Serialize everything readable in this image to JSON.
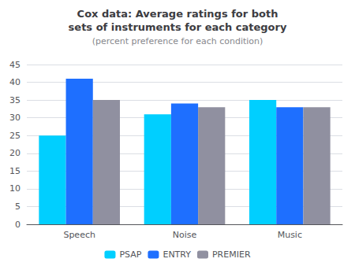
{
  "chart_data": {
    "type": "bar",
    "title": "Cox data: Average ratings for both\nsets of instruments for each category",
    "subtitle": "(percent preference for each condition)",
    "categories": [
      "Speech",
      "Noise",
      "Music"
    ],
    "series": [
      {
        "name": "PSAP",
        "color": "#00CFFF",
        "values": [
          25,
          31,
          35
        ]
      },
      {
        "name": "ENTRY",
        "color": "#1E6FFF",
        "values": [
          41,
          34,
          33
        ]
      },
      {
        "name": "PREMIER",
        "color": "#9090A0",
        "values": [
          35,
          33,
          33
        ]
      }
    ],
    "ylim": [
      0,
      45
    ],
    "yticks": [
      0,
      5,
      10,
      15,
      20,
      25,
      30,
      35,
      40,
      45
    ],
    "grid": true,
    "legend": "bottom"
  }
}
